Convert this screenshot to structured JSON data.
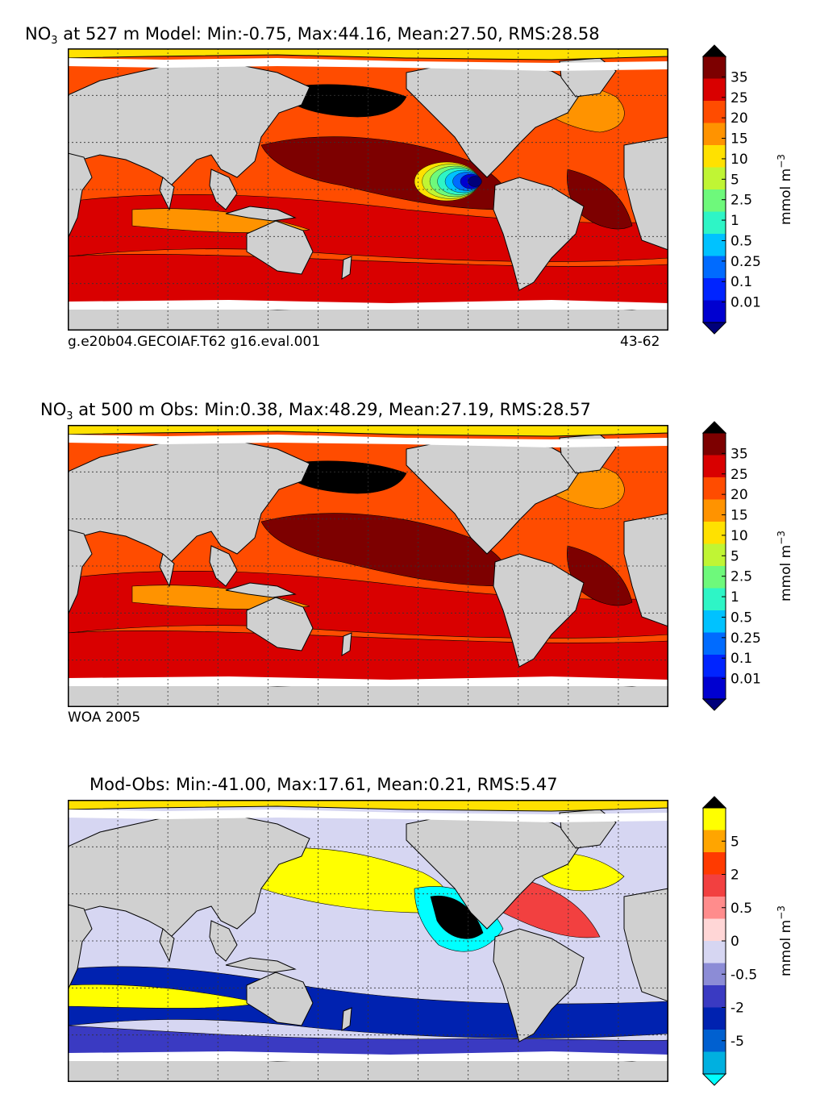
{
  "panels": [
    {
      "title_prefix": "NO",
      "title_sub": "3",
      "title_rest": " at 527 m Model: Min:-0.75, Max:44.16, Mean:27.50, RMS:28.58",
      "note_left": "g.e20b04.GECOIAF.T62 g16.eval.001",
      "note_right": "43-62"
    },
    {
      "title_prefix": "NO",
      "title_sub": "3",
      "title_rest": " at 500 m Obs: Min:0.38, Max:48.29, Mean:27.19, RMS:28.57",
      "note_left": "WOA 2005",
      "note_right": ""
    },
    {
      "title_prefix": "",
      "title_sub": "",
      "title_rest": "Mod-Obs: Min:-41.00, Max:17.61, Mean:0.21, RMS:5.47",
      "note_left": "",
      "note_right": ""
    }
  ],
  "chart_data": [
    {
      "type": "heatmap",
      "title": "NO3 at 527 m Model: Min:-0.75, Max:44.16, Mean:27.50, RMS:28.58",
      "stats": {
        "min": -0.75,
        "max": 44.16,
        "mean": 27.5,
        "rms": 28.58
      },
      "depth_m": 527,
      "colorbar": {
        "unit_base": "mmol m",
        "unit_exp": "−3",
        "tick_labels": [
          "35",
          "25",
          "20",
          "15",
          "10",
          "5",
          "2.5",
          "1",
          "0.5",
          "0.25",
          "0.1",
          "0.01"
        ],
        "colors": [
          "#000000",
          "#7d0000",
          "#d90000",
          "#ff4c00",
          "#ff9300",
          "#ffe100",
          "#c0f534",
          "#6ef97b",
          "#2ef5c6",
          "#00c2ff",
          "#006bff",
          "#0024ff",
          "#0000d0",
          "#00007a"
        ],
        "extend": "both"
      }
    },
    {
      "type": "heatmap",
      "title": "NO3 at 500 m Obs: Min:0.38, Max:48.29, Mean:27.19, RMS:28.57",
      "stats": {
        "min": 0.38,
        "max": 48.29,
        "mean": 27.19,
        "rms": 28.57
      },
      "depth_m": 500,
      "colorbar": {
        "unit_base": "mmol m",
        "unit_exp": "−3",
        "tick_labels": [
          "35",
          "25",
          "20",
          "15",
          "10",
          "5",
          "2.5",
          "1",
          "0.5",
          "0.25",
          "0.1",
          "0.01"
        ],
        "colors": [
          "#000000",
          "#7d0000",
          "#d90000",
          "#ff4c00",
          "#ff9300",
          "#ffe100",
          "#c0f534",
          "#6ef97b",
          "#2ef5c6",
          "#00c2ff",
          "#006bff",
          "#0024ff",
          "#0000d0",
          "#00007a"
        ],
        "extend": "both"
      }
    },
    {
      "type": "heatmap",
      "title": "Mod-Obs: Min:-41.00, Max:17.61, Mean:0.21, RMS:5.47",
      "stats": {
        "min": -41.0,
        "max": 17.61,
        "mean": 0.21,
        "rms": 5.47
      },
      "colorbar": {
        "unit_base": "mmol m",
        "unit_exp": "−3",
        "tick_labels": [
          "5",
          "2",
          "0.5",
          "0",
          "-0.5",
          "-2",
          "-5"
        ],
        "colors": [
          "#000000",
          "#ffff00",
          "#ffa500",
          "#ff3a00",
          "#f24040",
          "#ff8c8c",
          "#ffd6d6",
          "#d6d6f2",
          "#8c8cd6",
          "#3a3ac2",
          "#0022b0",
          "#0060d0",
          "#00b0e0",
          "#00ffff"
        ],
        "extend": "both"
      }
    }
  ],
  "colors": {
    "land": "#d0d0d0",
    "ice": "#ffffff",
    "coast": "#000000",
    "grid": "#333333"
  }
}
